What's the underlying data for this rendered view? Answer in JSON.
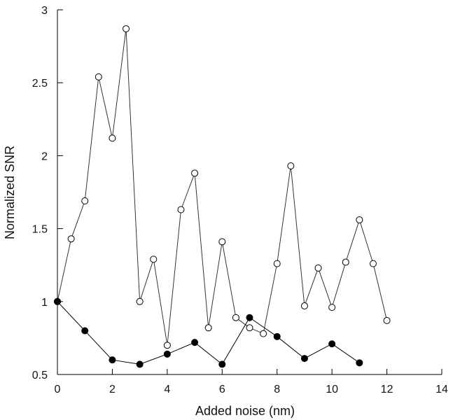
{
  "chart_data": {
    "type": "line",
    "title": "",
    "xlabel": "Added noise (nm)",
    "ylabel": "Normalized SNR",
    "xlim": [
      0,
      14
    ],
    "ylim": [
      0.5,
      3
    ],
    "xticks": [
      0,
      2,
      4,
      6,
      8,
      10,
      12,
      14
    ],
    "xtick_labels": [
      "0",
      "2",
      "4",
      "6",
      "8",
      "10",
      "12",
      "14"
    ],
    "yticks": [
      0.5,
      1,
      1.5,
      2,
      2.5,
      3
    ],
    "ytick_labels": [
      "0.5",
      "1",
      "1.5",
      "2",
      "2.5",
      "3"
    ],
    "grid": false,
    "series": [
      {
        "marker": "open-circle",
        "color": "#333333",
        "x": [
          0,
          0.5,
          1,
          1.5,
          2,
          2.5,
          3,
          3.5,
          4,
          4.5,
          5,
          5.5,
          6,
          6.5,
          7,
          7.5,
          8,
          8.5,
          9,
          9.5,
          10,
          10.5,
          11,
          11.5,
          12
        ],
        "y": [
          1.0,
          1.43,
          1.69,
          2.54,
          2.12,
          2.87,
          1.0,
          1.29,
          0.7,
          1.63,
          1.88,
          0.82,
          1.41,
          0.89,
          0.82,
          0.78,
          1.26,
          1.93,
          0.97,
          1.23,
          0.96,
          1.27,
          1.56,
          1.26,
          0.87
        ]
      },
      {
        "marker": "filled-circle",
        "color": "#000000",
        "x": [
          0,
          1,
          2,
          3,
          4,
          5,
          6,
          7,
          8,
          9,
          10,
          11
        ],
        "y": [
          1.0,
          0.8,
          0.6,
          0.57,
          0.64,
          0.72,
          0.57,
          0.89,
          0.76,
          0.61,
          0.71,
          0.58
        ]
      }
    ]
  }
}
